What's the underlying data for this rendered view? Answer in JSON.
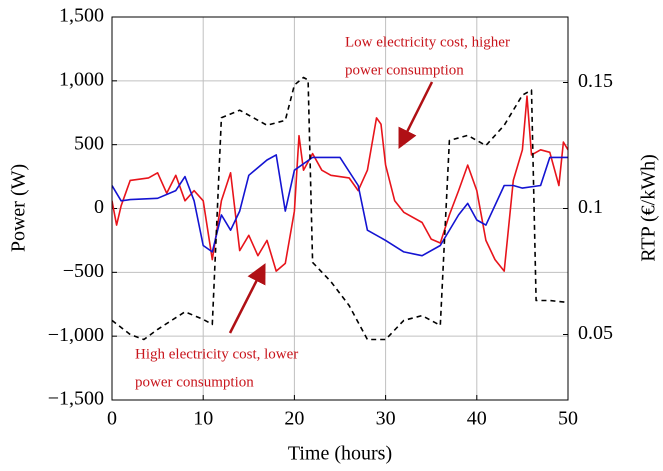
{
  "chart_data": {
    "type": "line",
    "xlabel": "Time (hours)",
    "ylabel": "Power (W)",
    "y2label": "RTP (€/kWh)",
    "xlim": [
      0,
      50
    ],
    "xticks": [
      0,
      10,
      20,
      30,
      40,
      50
    ],
    "ylim": [
      -1500,
      1500
    ],
    "yticks": [
      {
        "value": -1500,
        "label": "−1,500"
      },
      {
        "value": -1000,
        "label": "−1,000"
      },
      {
        "value": -500,
        "label": "−500"
      },
      0,
      500,
      {
        "value": 1000,
        "label": "1,000"
      },
      {
        "value": 1500,
        "label": "1,500"
      }
    ],
    "y2lim": [
      0.024,
      0.176
    ],
    "y2ticks": [
      0.05,
      0.1,
      0.15
    ],
    "grid": true,
    "series": [
      {
        "color": "#e8141b",
        "style": "solid",
        "x": [
          0,
          0.5,
          1,
          2,
          4,
          5,
          6,
          7,
          8,
          9,
          10,
          11,
          12,
          13,
          14,
          15,
          16,
          17,
          18,
          19,
          20,
          20.5,
          21,
          22,
          23,
          24,
          26,
          27,
          28,
          29,
          29.5,
          30,
          31,
          32,
          34,
          35,
          36,
          37,
          38,
          39,
          40,
          41,
          42,
          43,
          44,
          45,
          45.5,
          46,
          47,
          48,
          49,
          49.5,
          50
        ],
        "values": [
          60,
          -130,
          20,
          220,
          240,
          280,
          120,
          260,
          60,
          140,
          60,
          -400,
          60,
          280,
          -330,
          -210,
          -370,
          -250,
          -490,
          -430,
          -20,
          570,
          300,
          430,
          300,
          260,
          240,
          140,
          300,
          710,
          660,
          340,
          60,
          -30,
          -110,
          -240,
          -270,
          -50,
          140,
          340,
          140,
          -250,
          -400,
          -490,
          220,
          460,
          880,
          420,
          460,
          440,
          180,
          520,
          460
        ]
      },
      {
        "color": "#1414d2",
        "style": "solid",
        "x": [
          0,
          1,
          2,
          5,
          7,
          8,
          9,
          10,
          11,
          12,
          13,
          14,
          15,
          17,
          18,
          19,
          20,
          22,
          25,
          27,
          28,
          30,
          32,
          34,
          36,
          38,
          39,
          40,
          41,
          43,
          44,
          45,
          47,
          48,
          50
        ],
        "values": [
          180,
          60,
          70,
          80,
          140,
          250,
          60,
          -290,
          -340,
          -50,
          -170,
          -20,
          260,
          380,
          420,
          -20,
          300,
          400,
          400,
          180,
          -170,
          -250,
          -340,
          -370,
          -290,
          -50,
          40,
          -90,
          -130,
          180,
          180,
          160,
          180,
          400,
          400
        ]
      },
      {
        "color": "#000000",
        "style": "dashed",
        "axis": "y2",
        "x": [
          0,
          2,
          3.5,
          5,
          8,
          10,
          11,
          12,
          14,
          17,
          19,
          20,
          21,
          21.5,
          22,
          24,
          26,
          28,
          30,
          32,
          34,
          36,
          37,
          39,
          41,
          43,
          45,
          46,
          46.5,
          48,
          50
        ],
        "values": [
          0.0556,
          0.05,
          0.048,
          0.052,
          0.059,
          0.056,
          0.054,
          0.136,
          0.139,
          0.133,
          0.135,
          0.149,
          0.152,
          0.151,
          0.0786,
          0.071,
          0.0615,
          0.048,
          0.048,
          0.0556,
          0.0575,
          0.0536,
          0.127,
          0.129,
          0.125,
          0.133,
          0.145,
          0.147,
          0.0635,
          0.0635,
          0.0627
        ]
      }
    ],
    "annotations": [
      {
        "color": "#c8141b",
        "lines": [
          "Low electricity cost, higher",
          "power consumption"
        ]
      },
      {
        "color": "#c8141b",
        "lines": [
          "High electricity cost, lower",
          "power consumption"
        ]
      }
    ]
  }
}
